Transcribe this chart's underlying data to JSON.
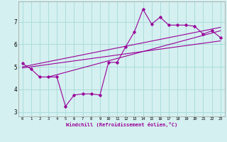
{
  "main_x": [
    0,
    1,
    2,
    3,
    4,
    5,
    6,
    7,
    8,
    9,
    10,
    11,
    12,
    13,
    14,
    15,
    16,
    17,
    18,
    19,
    20,
    21,
    22,
    23
  ],
  "main_y": [
    5.15,
    4.9,
    4.55,
    4.55,
    4.55,
    3.25,
    3.75,
    3.8,
    3.8,
    3.75,
    5.2,
    5.2,
    5.9,
    6.55,
    7.55,
    6.9,
    7.2,
    6.85,
    6.85,
    6.85,
    6.8,
    6.45,
    6.6,
    6.3
  ],
  "trend1_x": [
    0,
    23
  ],
  "trend1_y": [
    4.95,
    6.15
  ],
  "trend2_x": [
    0,
    23
  ],
  "trend2_y": [
    5.0,
    6.75
  ],
  "trend3_x": [
    3,
    23
  ],
  "trend3_y": [
    4.55,
    6.6
  ],
  "line_color": "#990099",
  "bg_color": "#d5f0f0",
  "grid_color": "#aadddd",
  "xlabel": "Windchill (Refroidissement éolien,°C)",
  "xlim": [
    -0.5,
    23.5
  ],
  "ylim": [
    2.8,
    7.9
  ],
  "yticks": [
    3,
    4,
    5,
    6,
    7
  ],
  "xticks": [
    0,
    1,
    2,
    3,
    4,
    5,
    6,
    7,
    8,
    9,
    10,
    11,
    12,
    13,
    14,
    15,
    16,
    17,
    18,
    19,
    20,
    21,
    22,
    23
  ]
}
